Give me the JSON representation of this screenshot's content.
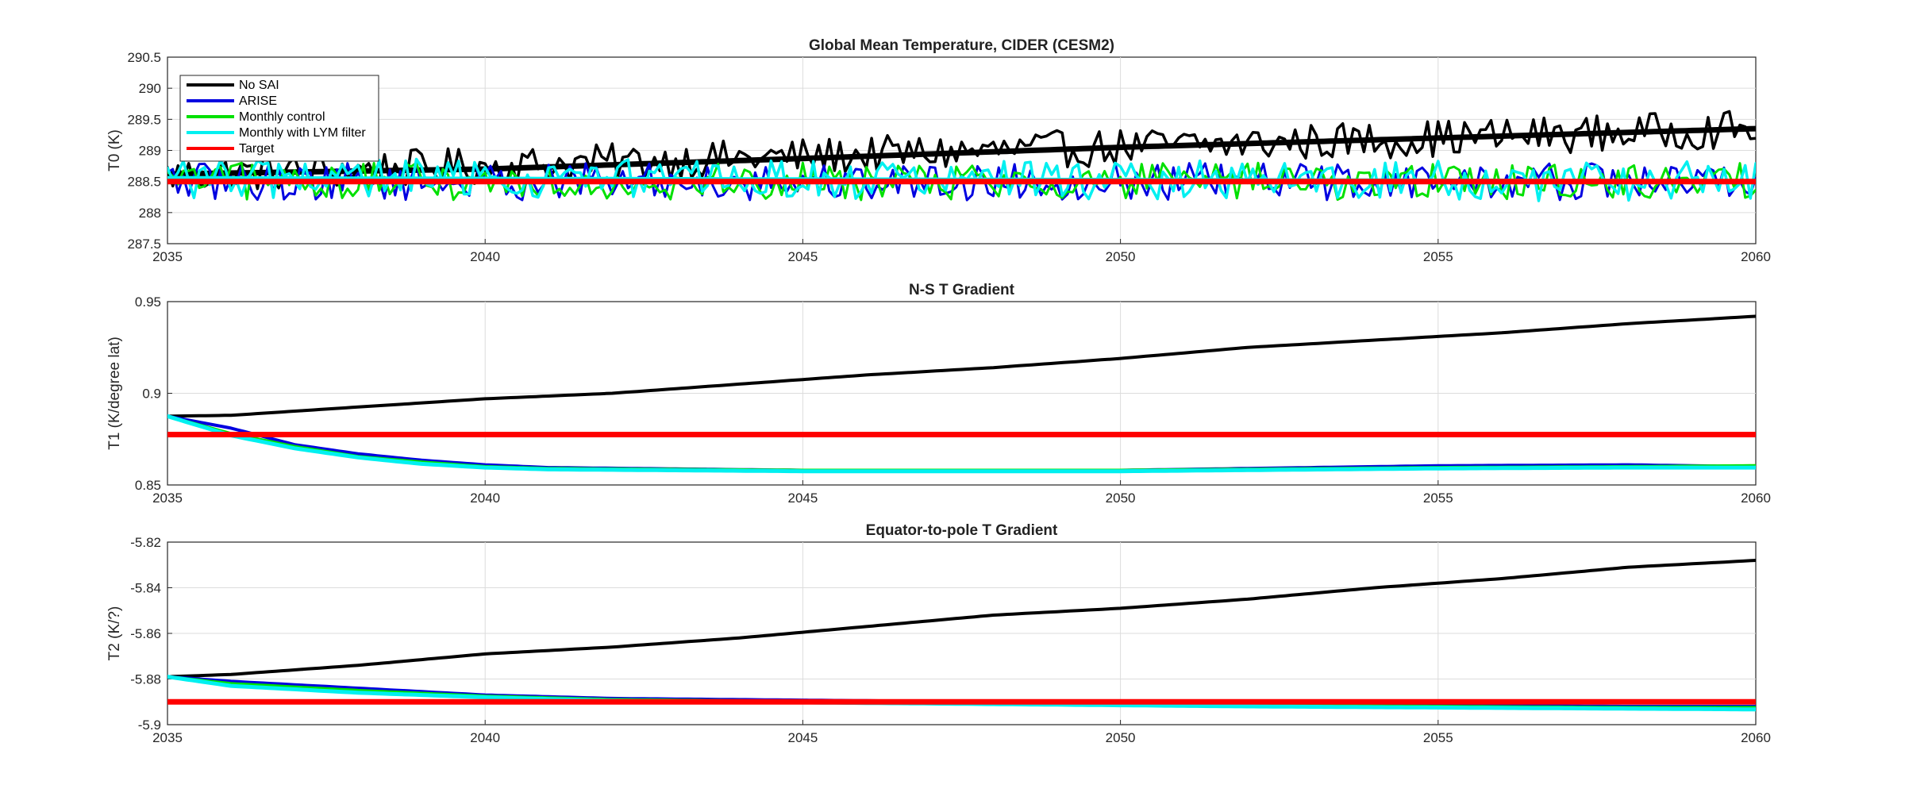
{
  "chart_data": [
    {
      "type": "line",
      "title": "Global Mean Temperature, CIDER (CESM2)",
      "xlabel": "",
      "ylabel": "T0 (K)",
      "xlim": [
        2035,
        2060
      ],
      "ylim": [
        287.5,
        290.5
      ],
      "xticks": [
        2035,
        2040,
        2045,
        2050,
        2055,
        2060
      ],
      "yticks": [
        287.5,
        288,
        288.5,
        289,
        289.5,
        290,
        290.5
      ],
      "ytick_labels": [
        "287.5",
        "288",
        "288.5",
        "289",
        "289.5",
        "290",
        "290.5"
      ],
      "grid": true,
      "legend_position": "top-left",
      "legend": [
        {
          "name": "No SAI",
          "color": "#000000"
        },
        {
          "name": "ARISE",
          "color": "#0000e0"
        },
        {
          "name": "Monthly control",
          "color": "#00e000"
        },
        {
          "name": "Monthly with LYM filter",
          "color": "#00f0f0"
        },
        {
          "name": "Target",
          "color": "#ff0000"
        }
      ],
      "series": [
        {
          "name": "No SAI",
          "color": "#000000",
          "kind": "monthly-noisy",
          "trend_start": 288.6,
          "trend_end": 289.35,
          "spread": 0.3
        },
        {
          "name": "No SAI",
          "color": "#000000",
          "kind": "smooth",
          "x": [
            2035,
            2040,
            2045,
            2050,
            2055,
            2060
          ],
          "y": [
            288.62,
            288.7,
            288.87,
            289.05,
            289.2,
            289.35
          ]
        },
        {
          "name": "ARISE",
          "color": "#0000e0",
          "kind": "monthly-noisy",
          "trend_start": 288.5,
          "trend_end": 288.5,
          "spread": 0.3
        },
        {
          "name": "Monthly control",
          "color": "#00e000",
          "kind": "monthly-noisy",
          "trend_start": 288.5,
          "trend_end": 288.5,
          "spread": 0.3
        },
        {
          "name": "Monthly with LYM filter",
          "color": "#00f0f0",
          "kind": "monthly-noisy",
          "trend_start": 288.55,
          "trend_end": 288.5,
          "spread": 0.32
        },
        {
          "name": "Monthly with LYM filter",
          "color": "#00f0f0",
          "kind": "smooth",
          "x": [
            2035,
            2060
          ],
          "y": [
            288.55,
            288.5
          ]
        },
        {
          "name": "Target",
          "color": "#ff0000",
          "kind": "flat",
          "x": [
            2035,
            2060
          ],
          "y": [
            288.5,
            288.5
          ]
        }
      ]
    },
    {
      "type": "line",
      "title": "N-S T Gradient",
      "xlabel": "",
      "ylabel": "T1 (K/degree lat)",
      "xlim": [
        2035,
        2060
      ],
      "ylim": [
        0.85,
        0.95
      ],
      "xticks": [
        2035,
        2040,
        2045,
        2050,
        2055,
        2060
      ],
      "yticks": [
        0.85,
        0.9,
        0.95
      ],
      "ytick_labels": [
        "0.85",
        "0.9",
        "0.95"
      ],
      "grid": true,
      "series": [
        {
          "name": "No SAI",
          "color": "#000000",
          "x": [
            2035,
            2036,
            2038,
            2040,
            2042,
            2044,
            2046,
            2048,
            2050,
            2052,
            2054,
            2056,
            2058,
            2060
          ],
          "y": [
            0.8875,
            0.888,
            0.8925,
            0.897,
            0.9,
            0.905,
            0.91,
            0.914,
            0.919,
            0.925,
            0.929,
            0.933,
            0.938,
            0.942
          ]
        },
        {
          "name": "ARISE",
          "color": "#0000e0",
          "x": [
            2035,
            2036,
            2037,
            2038,
            2039,
            2040,
            2041,
            2045,
            2050,
            2055,
            2058,
            2060
          ],
          "y": [
            0.8875,
            0.881,
            0.872,
            0.867,
            0.8635,
            0.861,
            0.8595,
            0.858,
            0.858,
            0.8605,
            0.861,
            0.86
          ]
        },
        {
          "name": "Monthly control",
          "color": "#00e000",
          "x": [
            2035,
            2036,
            2037,
            2038,
            2039,
            2040,
            2041,
            2045,
            2050,
            2055,
            2058,
            2060
          ],
          "y": [
            0.8875,
            0.878,
            0.871,
            0.8655,
            0.8625,
            0.86,
            0.859,
            0.858,
            0.858,
            0.8595,
            0.86,
            0.8605
          ]
        },
        {
          "name": "Monthly with LYM filter",
          "color": "#00f0f0",
          "x": [
            2035,
            2036,
            2037,
            2038,
            2039,
            2040,
            2041,
            2045,
            2050,
            2055,
            2058,
            2060
          ],
          "y": [
            0.8875,
            0.877,
            0.87,
            0.865,
            0.8615,
            0.8595,
            0.8585,
            0.8575,
            0.8575,
            0.859,
            0.8595,
            0.8595
          ]
        },
        {
          "name": "Target",
          "color": "#ff0000",
          "x": [
            2035,
            2060
          ],
          "y": [
            0.8775,
            0.8775
          ]
        }
      ]
    },
    {
      "type": "line",
      "title": "Equator-to-pole T Gradient",
      "xlabel": "",
      "ylabel": "T2 (K/?)",
      "xlim": [
        2035,
        2060
      ],
      "ylim": [
        -5.9,
        -5.82
      ],
      "xticks": [
        2035,
        2040,
        2045,
        2050,
        2055,
        2060
      ],
      "yticks": [
        -5.9,
        -5.88,
        -5.86,
        -5.84,
        -5.82
      ],
      "ytick_labels": [
        "-5.9",
        "-5.88",
        "-5.86",
        "-5.84",
        "-5.82"
      ],
      "grid": true,
      "series": [
        {
          "name": "No SAI",
          "color": "#000000",
          "x": [
            2035,
            2036,
            2038,
            2040,
            2042,
            2044,
            2046,
            2048,
            2050,
            2052,
            2054,
            2056,
            2058,
            2060
          ],
          "y": [
            -5.879,
            -5.878,
            -5.874,
            -5.869,
            -5.866,
            -5.862,
            -5.857,
            -5.852,
            -5.849,
            -5.845,
            -5.84,
            -5.836,
            -5.831,
            -5.828
          ]
        },
        {
          "name": "ARISE",
          "color": "#0000e0",
          "x": [
            2035,
            2036,
            2038,
            2040,
            2042,
            2044,
            2046,
            2048,
            2050,
            2052,
            2055,
            2058,
            2060
          ],
          "y": [
            -5.879,
            -5.881,
            -5.884,
            -5.887,
            -5.8885,
            -5.889,
            -5.8895,
            -5.89,
            -5.8905,
            -5.891,
            -5.8915,
            -5.892,
            -5.892
          ]
        },
        {
          "name": "Monthly control",
          "color": "#00e000",
          "x": [
            2035,
            2036,
            2038,
            2040,
            2042,
            2044,
            2046,
            2048,
            2050,
            2052,
            2055,
            2058,
            2060
          ],
          "y": [
            -5.879,
            -5.882,
            -5.885,
            -5.8875,
            -5.889,
            -5.8895,
            -5.89,
            -5.8905,
            -5.891,
            -5.8915,
            -5.892,
            -5.8925,
            -5.8925
          ]
        },
        {
          "name": "Monthly with LYM filter",
          "color": "#00f0f0",
          "x": [
            2035,
            2036,
            2038,
            2040,
            2042,
            2044,
            2046,
            2048,
            2050,
            2052,
            2055,
            2058,
            2060
          ],
          "y": [
            -5.879,
            -5.883,
            -5.886,
            -5.888,
            -5.8895,
            -5.89,
            -5.8905,
            -5.891,
            -5.8915,
            -5.892,
            -5.8925,
            -5.893,
            -5.8933
          ]
        },
        {
          "name": "Target",
          "color": "#ff0000",
          "x": [
            2035,
            2060
          ],
          "y": [
            -5.89,
            -5.89
          ]
        }
      ]
    }
  ]
}
